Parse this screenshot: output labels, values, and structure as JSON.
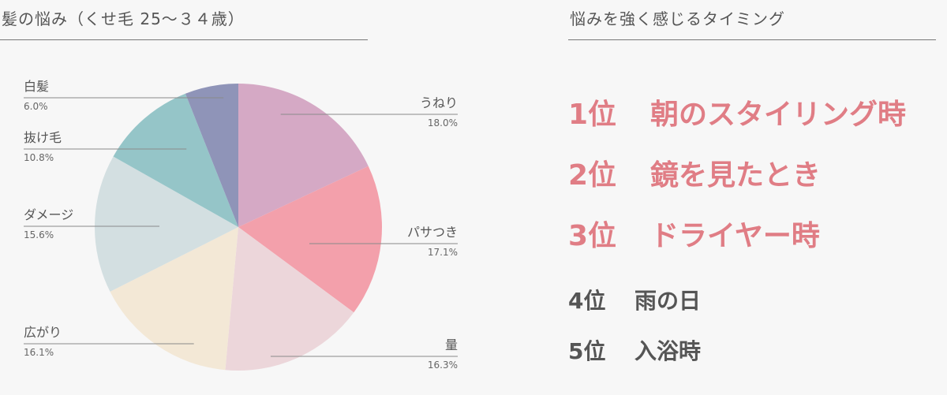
{
  "chart_title": "髪の悩み（くせ毛 25～３４歳）",
  "ranking_title": "悩みを強く感じるタイミング",
  "chart_data": {
    "type": "pie",
    "slices": [
      {
        "label": "うねり",
        "value": 18.0,
        "value_text": "18.0%",
        "color": "#d5a9c5"
      },
      {
        "label": "パサつき",
        "value": 17.1,
        "value_text": "17.1%",
        "color": "#f3a0ab"
      },
      {
        "label": "量",
        "value": 16.3,
        "value_text": "16.3%",
        "color": "#ecd6da"
      },
      {
        "label": "広がり",
        "value": 16.1,
        "value_text": "16.1%",
        "color": "#f3e8d6"
      },
      {
        "label": "ダメージ",
        "value": 15.6,
        "value_text": "15.6%",
        "color": "#d3dfe1"
      },
      {
        "label": "抜け毛",
        "value": 10.8,
        "value_text": "10.8%",
        "color": "#95c5c8"
      },
      {
        "label": "白髪",
        "value": 6.0,
        "value_text": "6.0%",
        "color": "#8f94b8"
      }
    ],
    "start": "top",
    "direction": "clockwise"
  },
  "ranking": [
    {
      "rank": "1位",
      "text": "朝のスタイリング時"
    },
    {
      "rank": "2位",
      "text": "鏡を見たとき"
    },
    {
      "rank": "3位",
      "text": "ドライヤー時"
    },
    {
      "rank": "4位",
      "text": "雨の日"
    },
    {
      "rank": "5位",
      "text": "入浴時"
    }
  ]
}
